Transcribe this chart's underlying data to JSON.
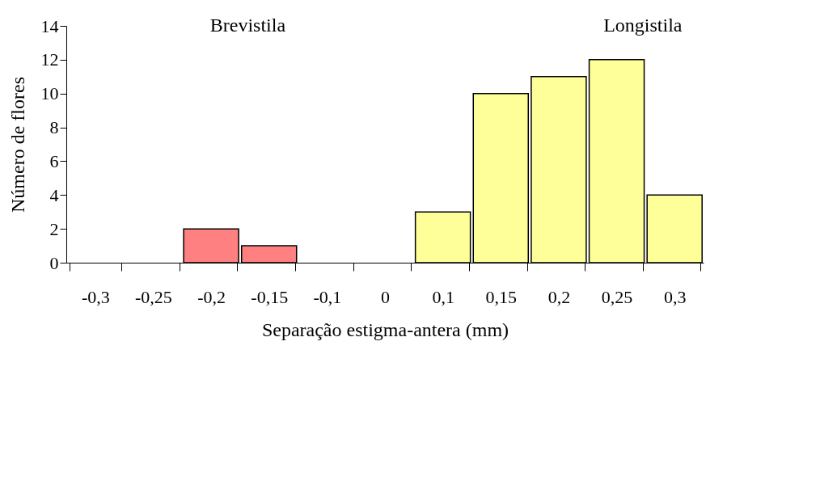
{
  "chart_data": {
    "type": "bar",
    "xlabel": "Separação estigma-antera (mm)",
    "ylabel": "Número de flores",
    "categories": [
      "-0,3",
      "-0,25",
      "-0,2",
      "-0,15",
      "-0,1",
      "0",
      "0,1",
      "0,15",
      "0,2",
      "0,25",
      "0,3"
    ],
    "values": [
      0,
      0,
      2,
      1,
      0,
      0,
      3,
      10,
      11,
      12,
      4
    ],
    "colors": [
      "#ffff99",
      "#ffff99",
      "#ff8080",
      "#ff8080",
      "#ffff99",
      "#ffff99",
      "#ffff99",
      "#ffff99",
      "#ffff99",
      "#ffff99",
      "#ffff99"
    ],
    "ylim": [
      0,
      14
    ],
    "yticks": [
      0,
      2,
      4,
      6,
      8,
      10,
      12,
      14
    ],
    "grid": false,
    "annotations": [
      "Brevistila",
      "Longistila"
    ]
  }
}
